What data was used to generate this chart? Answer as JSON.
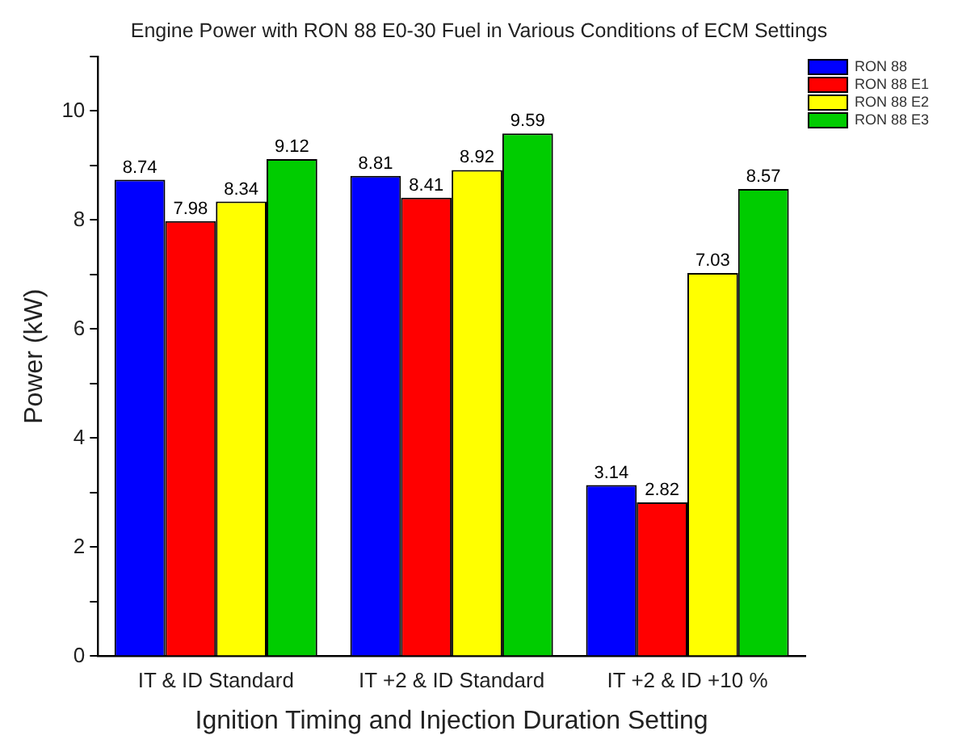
{
  "chart_data": {
    "type": "bar",
    "title": "Engine Power with RON 88 E0-30 Fuel in Various Conditions of ECM Settings",
    "xlabel": "Ignition Timing and Injection Duration Setting",
    "ylabel": "Power (kW)",
    "categories": [
      "IT & ID Standard",
      "IT +2 & ID Standard",
      "IT +2 & ID +10 %"
    ],
    "series": [
      {
        "name": "RON 88",
        "color": "#0000ff",
        "values": [
          8.74,
          8.81,
          3.14
        ]
      },
      {
        "name": "RON 88 E1",
        "color": "#ff0000",
        "values": [
          7.98,
          8.41,
          2.82
        ]
      },
      {
        "name": "RON 88 E2",
        "color": "#ffff00",
        "values": [
          8.34,
          8.92,
          7.03
        ]
      },
      {
        "name": "RON 88 E3",
        "color": "#00cc00",
        "values": [
          9.12,
          9.59,
          8.57
        ]
      }
    ],
    "ylim": [
      0,
      11
    ],
    "yticks": [
      0,
      {
        "value": 1,
        "label": null
      },
      2,
      {
        "value": 3,
        "label": null
      },
      4,
      {
        "value": 5,
        "label": null
      },
      6,
      {
        "value": 7,
        "label": null
      },
      8,
      {
        "value": 9,
        "label": null
      },
      10,
      {
        "value": 11,
        "label": null
      }
    ],
    "grid": false,
    "legend": "top right",
    "data_labels": true
  }
}
